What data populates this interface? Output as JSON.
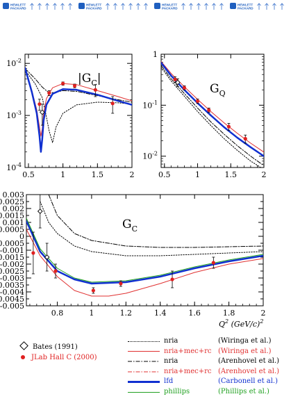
{
  "banner": {
    "brand_line1": "HEWLETT",
    "brand_line2": "PACKARD",
    "colors": {
      "logo": "#1f5fbf",
      "arrows": "#4d7fd0"
    }
  },
  "chart_data": [
    {
      "id": "gc_abs",
      "type": "line",
      "title": "|G",
      "title_sub": "C",
      "title_end": "|",
      "xlim": [
        0.45,
        2.0
      ],
      "ylim": [
        0.0001,
        0.015
      ],
      "yscale": "log",
      "x_ticks": [
        {
          "v": 0.5,
          "label": "0.5"
        },
        {
          "v": 1.0,
          "label": "1"
        },
        {
          "v": 1.5,
          "label": "1.5"
        },
        {
          "v": 2.0,
          "label": "2"
        }
      ],
      "y_ticks": [
        {
          "v": 0.01,
          "base": "10",
          "exp": "-2"
        },
        {
          "v": 0.001,
          "base": "10",
          "exp": "-3"
        },
        {
          "v": 0.0001,
          "base": "10",
          "exp": "-4"
        }
      ],
      "series": [
        {
          "model": "nria-wiringa",
          "color": "#000000",
          "dash": "1.5,2",
          "width": 1,
          "x": [
            0.45,
            0.6,
            0.7,
            0.75,
            0.8,
            0.85,
            0.9,
            1.0,
            1.2,
            1.5,
            1.8,
            2.0
          ],
          "y": [
            0.0075,
            0.004,
            0.0022,
            0.0011,
            0.0005,
            0.0003,
            0.0006,
            0.0011,
            0.0016,
            0.0018,
            0.00175,
            0.00165
          ]
        },
        {
          "model": "nria-arenhovel",
          "color": "#000000",
          "dash": "6,2,1.5,2",
          "width": 1,
          "x": [
            0.45,
            0.6,
            0.7,
            0.8,
            0.9,
            1.0,
            1.2,
            1.5,
            1.8,
            2.0
          ],
          "y": [
            0.008,
            0.005,
            0.0035,
            0.0027,
            0.0028,
            0.003,
            0.0029,
            0.0024,
            0.002,
            0.0018
          ]
        },
        {
          "model": "nria-mec-rc-wiringa",
          "color": "#e03030",
          "dash": "",
          "width": 1,
          "x": [
            0.45,
            0.55,
            0.62,
            0.66,
            0.68,
            0.7,
            0.72,
            0.76,
            0.85,
            1.0,
            1.2,
            1.5,
            1.8,
            2.0
          ],
          "y": [
            0.0085,
            0.003,
            0.0013,
            0.0006,
            0.0004,
            0.00055,
            0.0011,
            0.0021,
            0.0034,
            0.0041,
            0.0039,
            0.003,
            0.0023,
            0.0019
          ]
        },
        {
          "model": "lfd-carbonell",
          "color": "#1030d0",
          "dash": "",
          "width": 2.5,
          "x": [
            0.45,
            0.55,
            0.62,
            0.66,
            0.68,
            0.7,
            0.72,
            0.76,
            0.85,
            1.0,
            1.2,
            1.5,
            1.8,
            2.0
          ],
          "y": [
            0.0082,
            0.0028,
            0.0011,
            0.0004,
            0.0002,
            0.00035,
            0.0008,
            0.0016,
            0.0026,
            0.0032,
            0.0031,
            0.0025,
            0.0019,
            0.0016
          ]
        }
      ],
      "points": [
        {
          "set": "jlab",
          "x": 0.66,
          "y": 0.00165,
          "err": 0.0004
        },
        {
          "set": "bates",
          "x": 0.7,
          "y": 0.00115,
          "err": 0.0005
        },
        {
          "set": "jlab",
          "x": 0.8,
          "y": 0.0027,
          "err": 0.0003
        },
        {
          "set": "jlab",
          "x": 1.0,
          "y": 0.0041,
          "err": 0.0003
        },
        {
          "set": "jlab",
          "x": 1.17,
          "y": 0.0037,
          "err": 0.0003
        },
        {
          "set": "jlab",
          "x": 1.47,
          "y": 0.0031,
          "err": 0.0008
        },
        {
          "set": "jlab",
          "x": 1.72,
          "y": 0.0017,
          "err": 0.0006
        }
      ]
    },
    {
      "id": "gq",
      "type": "line",
      "title": "G",
      "title_sub": "Q",
      "title_end": "",
      "xlim": [
        0.45,
        2.0
      ],
      "ylim": [
        0.006,
        1.0
      ],
      "yscale": "log",
      "x_ticks": [
        {
          "v": 0.5,
          "label": "0.5"
        },
        {
          "v": 1.0,
          "label": "1"
        },
        {
          "v": 1.5,
          "label": "1.5"
        },
        {
          "v": 2.0,
          "label": "2"
        }
      ],
      "y_ticks": [
        {
          "v": 1.0,
          "base": "1",
          "exp": ""
        },
        {
          "v": 0.1,
          "base": "10",
          "exp": "-1"
        },
        {
          "v": 0.01,
          "base": "10",
          "exp": "-2"
        }
      ],
      "series": [
        {
          "model": "nria-wiringa",
          "color": "#000000",
          "dash": "1.5,2",
          "width": 1,
          "x": [
            0.45,
            0.6,
            0.8,
            1.0,
            1.2,
            1.4,
            1.6,
            1.8,
            2.0
          ],
          "y": [
            0.55,
            0.3,
            0.15,
            0.075,
            0.04,
            0.022,
            0.013,
            0.008,
            0.0055
          ]
        },
        {
          "model": "nria-arenhovel",
          "color": "#000000",
          "dash": "6,2,1.5,2",
          "width": 1,
          "x": [
            0.45,
            0.6,
            0.8,
            1.0,
            1.2,
            1.4,
            1.6,
            1.8,
            2.0
          ],
          "y": [
            0.6,
            0.33,
            0.17,
            0.088,
            0.047,
            0.027,
            0.016,
            0.01,
            0.0065
          ]
        },
        {
          "model": "nria-mec-rc-wiringa",
          "color": "#e03030",
          "dash": "",
          "width": 1,
          "x": [
            0.45,
            0.6,
            0.8,
            1.0,
            1.2,
            1.4,
            1.6,
            1.8,
            2.0
          ],
          "y": [
            0.72,
            0.42,
            0.23,
            0.13,
            0.075,
            0.045,
            0.028,
            0.018,
            0.012
          ]
        },
        {
          "model": "lfd-carbonell",
          "color": "#1030d0",
          "dash": "",
          "width": 2.5,
          "x": [
            0.45,
            0.6,
            0.8,
            1.0,
            1.2,
            1.4,
            1.6,
            1.8,
            2.0
          ],
          "y": [
            0.68,
            0.38,
            0.2,
            0.11,
            0.063,
            0.037,
            0.023,
            0.015,
            0.01
          ]
        }
      ],
      "points": [
        {
          "set": "jlab",
          "x": 0.66,
          "y": 0.32,
          "err": 0.04
        },
        {
          "set": "bates",
          "x": 0.7,
          "y": 0.28,
          "err": 0.05
        },
        {
          "set": "jlab",
          "x": 0.8,
          "y": 0.22,
          "err": 0.02
        },
        {
          "set": "jlab",
          "x": 1.0,
          "y": 0.12,
          "err": 0.012
        },
        {
          "set": "jlab",
          "x": 1.17,
          "y": 0.08,
          "err": 0.008
        },
        {
          "set": "jlab",
          "x": 1.47,
          "y": 0.038,
          "err": 0.006
        },
        {
          "set": "jlab",
          "x": 1.72,
          "y": 0.022,
          "err": 0.004
        }
      ]
    },
    {
      "id": "gc",
      "type": "line",
      "title": "G",
      "title_sub": "C",
      "title_end": "",
      "xlabel": "Q",
      "xlabel_sup": "2",
      "xlabel_unit": " (GeV/c)",
      "xlabel_unit_sup": "2",
      "xlim": [
        0.62,
        2.0
      ],
      "ylim": [
        -0.005,
        0.003
      ],
      "yscale": "linear",
      "x_ticks": [
        {
          "v": 0.8,
          "label": "0.8"
        },
        {
          "v": 1.0,
          "label": "1"
        },
        {
          "v": 1.2,
          "label": "1.2"
        },
        {
          "v": 1.4,
          "label": "1.4"
        },
        {
          "v": 1.6,
          "label": "1.6"
        },
        {
          "v": 1.8,
          "label": "1.8"
        },
        {
          "v": 2.0,
          "label": "2"
        }
      ],
      "y_ticks": [
        {
          "v": 0.003,
          "label": "0.003"
        },
        {
          "v": 0.0025,
          "label": "0.0025"
        },
        {
          "v": 0.002,
          "label": "0.002"
        },
        {
          "v": 0.0015,
          "label": "0.0015"
        },
        {
          "v": 0.001,
          "label": "0.001"
        },
        {
          "v": 0.0005,
          "label": "0.0005"
        },
        {
          "v": 0.0,
          "label": "0"
        },
        {
          "v": -0.0005,
          "label": "-0.0005"
        },
        {
          "v": -0.001,
          "label": "-0.001"
        },
        {
          "v": -0.0015,
          "label": "-0.0015"
        },
        {
          "v": -0.002,
          "label": "-0.002"
        },
        {
          "v": -0.0025,
          "label": "-0.0025"
        },
        {
          "v": -0.003,
          "label": "-0.003"
        },
        {
          "v": -0.0035,
          "label": "-0.0035"
        },
        {
          "v": -0.004,
          "label": "-0.004"
        },
        {
          "v": -0.0045,
          "label": "-0.0045"
        },
        {
          "v": -0.005,
          "label": "-0.005"
        }
      ],
      "series": [
        {
          "model": "nria-wiringa",
          "color": "#000000",
          "dash": "1.5,2",
          "width": 1,
          "x": [
            0.7,
            0.75,
            0.8,
            0.9,
            1.0,
            1.2,
            1.4,
            1.6,
            1.8,
            2.0
          ],
          "y": [
            0.0025,
            0.001,
            0.0002,
            -0.0007,
            -0.0011,
            -0.0014,
            -0.0014,
            -0.0013,
            -0.0012,
            -0.0011
          ]
        },
        {
          "model": "nria-arenhovel",
          "color": "#000000",
          "dash": "6,2,1.5,2",
          "width": 1,
          "x": [
            0.75,
            0.8,
            0.9,
            1.0,
            1.2,
            1.4,
            1.6,
            1.8,
            2.0
          ],
          "y": [
            0.003,
            0.0015,
            0.0002,
            -0.0003,
            -0.0007,
            -0.0008,
            -0.0008,
            -0.00075,
            -0.0007
          ]
        },
        {
          "model": "nria-mec-rc-wiringa",
          "color": "#e03030",
          "dash": "",
          "width": 1,
          "x": [
            0.62,
            0.7,
            0.8,
            0.9,
            1.0,
            1.1,
            1.2,
            1.4,
            1.6,
            1.8,
            2.0
          ],
          "y": [
            0.0005,
            -0.0014,
            -0.0029,
            -0.0039,
            -0.0043,
            -0.0043,
            -0.0041,
            -0.0034,
            -0.0026,
            -0.002,
            -0.0016
          ]
        },
        {
          "model": "lfd-carbonell",
          "color": "#1030d0",
          "dash": "",
          "width": 2.5,
          "x": [
            0.62,
            0.7,
            0.8,
            0.9,
            1.0,
            1.2,
            1.4,
            1.6,
            1.8,
            2.0
          ],
          "y": [
            0.0011,
            -0.0011,
            -0.0025,
            -0.0031,
            -0.0034,
            -0.0033,
            -0.0029,
            -0.0023,
            -0.0018,
            -0.0014
          ]
        },
        {
          "model": "phillips",
          "color": "#20a020",
          "dash": "",
          "width": 1,
          "x": [
            0.62,
            0.7,
            0.8,
            0.9,
            1.0,
            1.2,
            1.4,
            1.6,
            1.8,
            2.0
          ],
          "y": [
            0.0013,
            -0.0009,
            -0.0023,
            -0.003,
            -0.0033,
            -0.0032,
            -0.0028,
            -0.0022,
            -0.0017,
            -0.0013
          ]
        }
      ],
      "points": [
        {
          "set": "jlab",
          "x": 0.66,
          "y": -0.0012,
          "err": 0.0015
        },
        {
          "set": "bates",
          "x": 0.7,
          "y": 0.0018,
          "err": 0.0012
        },
        {
          "set": "bates",
          "x": 0.74,
          "y": -0.0015,
          "err": 0.001
        },
        {
          "set": "jlab",
          "x": 0.79,
          "y": -0.0025,
          "err": 0.0005
        },
        {
          "set": "jlab",
          "x": 1.01,
          "y": -0.0039,
          "err": 0.0002
        },
        {
          "set": "jlab",
          "x": 1.17,
          "y": -0.0034,
          "err": 0.0002
        },
        {
          "set": "jlab",
          "x": 1.47,
          "y": -0.0031,
          "err": 0.0006
        },
        {
          "set": "jlab",
          "x": 1.71,
          "y": -0.0019,
          "err": 0.0004
        }
      ]
    }
  ],
  "legend": {
    "data_sets": [
      {
        "id": "bates",
        "label": "Bates (1991)",
        "color": "#000000",
        "symbol": "open-diamond"
      },
      {
        "id": "jlab",
        "label": "JLab Hall C (2000)",
        "color": "#e02020",
        "symbol": "filled-circle"
      }
    ],
    "models": [
      {
        "id": "nria-wiringa",
        "name": "nria",
        "ref": "(Wiringa et al.)",
        "color": "#000000",
        "style": "dotted"
      },
      {
        "id": "nria-mec-rc-wiringa",
        "name": "nria+mec+rc",
        "ref": "(Wiringa et al.)",
        "color": "#e03030",
        "style": "solid"
      },
      {
        "id": "nria-arenhovel",
        "name": "nria",
        "ref": "(Arenhovel et al.)",
        "color": "#000000",
        "style": "dash-dot"
      },
      {
        "id": "nria-mec-rc-arenhovel",
        "name": "nria+mec+rc",
        "ref": "(Arenhovel et al.)",
        "color": "#e03030",
        "style": "dash-dot"
      },
      {
        "id": "lfd-carbonell",
        "name": "lfd",
        "ref": "(Carbonell et al.)",
        "color": "#1030d0",
        "style": "thick"
      },
      {
        "id": "phillips",
        "name": "phillips",
        "ref": "(Phillips et al.)",
        "color": "#20a020",
        "style": "solid"
      }
    ]
  }
}
